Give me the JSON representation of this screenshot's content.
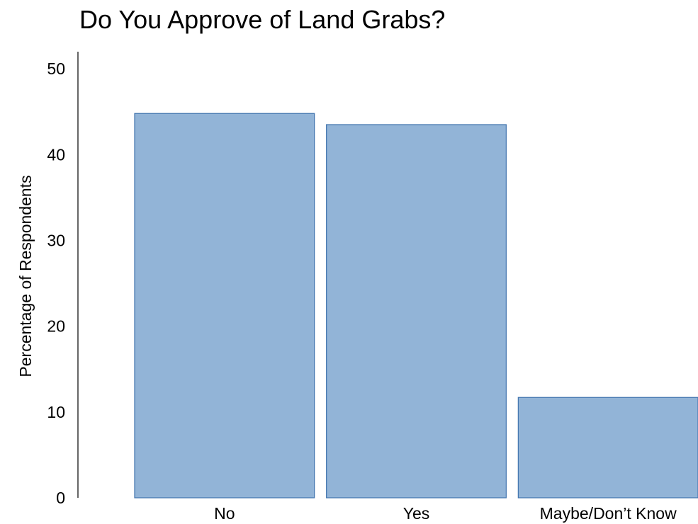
{
  "chart_data": {
    "type": "bar",
    "title": "Do You Approve of Land Grabs?",
    "xlabel": "",
    "ylabel": "Percentage of Respondents",
    "categories": [
      "No",
      "Yes",
      "Maybe/Don’t Know"
    ],
    "values": [
      44.8,
      43.5,
      11.7
    ],
    "ylim": [
      0,
      52
    ],
    "yticks": [
      "0",
      "10",
      "20",
      "30",
      "40",
      "50"
    ],
    "grid": false,
    "legend": "none",
    "bar_fill": "#92b4d7",
    "bar_stroke": "#3f73ad"
  }
}
